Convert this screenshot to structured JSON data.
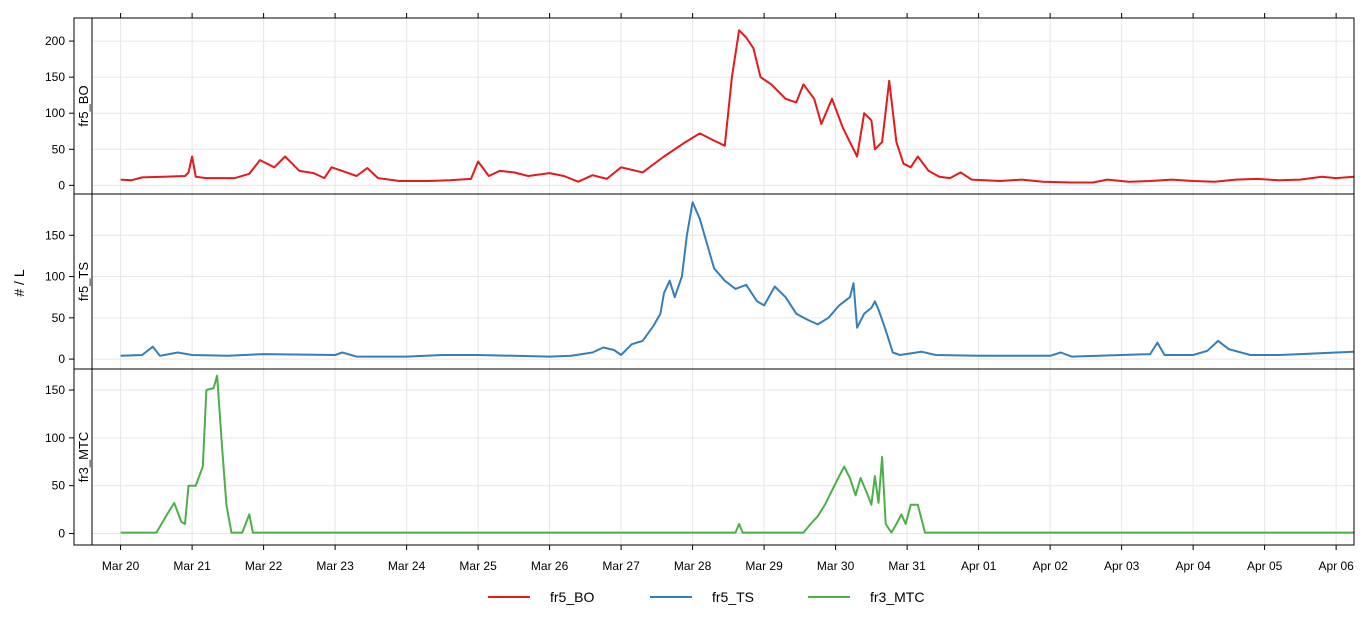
{
  "chart_data": {
    "type": "line",
    "ylabel": "# / L",
    "x_tick_labels": [
      "Mar 20",
      "Mar 21",
      "Mar 22",
      "Mar 23",
      "Mar 24",
      "Mar 25",
      "Mar 26",
      "Mar 27",
      "Mar 28",
      "Mar 29",
      "Mar 30",
      "Mar 31",
      "Apr 01",
      "Apr 02",
      "Apr 03",
      "Apr 04",
      "Apr 05",
      "Apr 06"
    ],
    "x_tick_days": [
      0,
      1,
      2,
      3,
      4,
      5,
      6,
      7,
      8,
      9,
      10,
      11,
      12,
      13,
      14,
      15,
      16,
      17
    ],
    "xlim_days": [
      -0.4,
      17.25
    ],
    "grid": true,
    "legend_position": "bottom",
    "colors": {
      "fr5_BO": "#e41a1c",
      "fr5_TS": "#377eb8",
      "fr3_MTC": "#4daf4a"
    },
    "panels": [
      {
        "strip_label": "fr5_BO",
        "ylim": [
          -12,
          232
        ],
        "y_ticks": [
          0,
          50,
          100,
          150,
          200
        ],
        "series_name": "fr5_BO",
        "color": "#e41a1c",
        "points": [
          [
            0,
            8
          ],
          [
            0.15,
            7
          ],
          [
            0.3,
            11
          ],
          [
            0.6,
            12
          ],
          [
            0.9,
            13
          ],
          [
            0.95,
            18
          ],
          [
            1.0,
            40
          ],
          [
            1.05,
            12
          ],
          [
            1.2,
            10
          ],
          [
            1.6,
            10
          ],
          [
            1.8,
            16
          ],
          [
            1.95,
            35
          ],
          [
            2.15,
            25
          ],
          [
            2.3,
            40
          ],
          [
            2.5,
            20
          ],
          [
            2.7,
            17
          ],
          [
            2.85,
            10
          ],
          [
            2.95,
            25
          ],
          [
            3.1,
            20
          ],
          [
            3.3,
            13
          ],
          [
            3.45,
            24
          ],
          [
            3.6,
            10
          ],
          [
            3.9,
            6
          ],
          [
            4.3,
            6
          ],
          [
            4.6,
            7
          ],
          [
            4.9,
            9
          ],
          [
            5.0,
            33
          ],
          [
            5.15,
            13
          ],
          [
            5.3,
            20
          ],
          [
            5.5,
            18
          ],
          [
            5.7,
            13
          ],
          [
            6.0,
            17
          ],
          [
            6.2,
            13
          ],
          [
            6.4,
            5
          ],
          [
            6.6,
            14
          ],
          [
            6.8,
            9
          ],
          [
            7.0,
            25
          ],
          [
            7.3,
            18
          ],
          [
            7.6,
            40
          ],
          [
            7.9,
            60
          ],
          [
            8.1,
            72
          ],
          [
            8.3,
            62
          ],
          [
            8.45,
            55
          ],
          [
            8.55,
            150
          ],
          [
            8.65,
            215
          ],
          [
            8.75,
            205
          ],
          [
            8.85,
            190
          ],
          [
            8.95,
            150
          ],
          [
            9.1,
            140
          ],
          [
            9.3,
            120
          ],
          [
            9.45,
            115
          ],
          [
            9.55,
            140
          ],
          [
            9.7,
            120
          ],
          [
            9.8,
            85
          ],
          [
            9.95,
            120
          ],
          [
            10.1,
            80
          ],
          [
            10.2,
            60
          ],
          [
            10.3,
            40
          ],
          [
            10.4,
            100
          ],
          [
            10.5,
            90
          ],
          [
            10.55,
            50
          ],
          [
            10.65,
            60
          ],
          [
            10.75,
            145
          ],
          [
            10.85,
            60
          ],
          [
            10.95,
            30
          ],
          [
            11.05,
            25
          ],
          [
            11.15,
            40
          ],
          [
            11.3,
            20
          ],
          [
            11.45,
            12
          ],
          [
            11.6,
            10
          ],
          [
            11.75,
            18
          ],
          [
            11.9,
            8
          ],
          [
            12.3,
            6
          ],
          [
            12.6,
            8
          ],
          [
            12.9,
            5
          ],
          [
            13.3,
            4
          ],
          [
            13.6,
            4
          ],
          [
            13.8,
            8
          ],
          [
            14.1,
            5
          ],
          [
            14.4,
            6
          ],
          [
            14.7,
            8
          ],
          [
            15.0,
            6
          ],
          [
            15.3,
            5
          ],
          [
            15.6,
            8
          ],
          [
            15.9,
            9
          ],
          [
            16.2,
            7
          ],
          [
            16.5,
            8
          ],
          [
            16.8,
            12
          ],
          [
            17.0,
            10
          ],
          [
            17.25,
            12
          ]
        ]
      },
      {
        "strip_label": "fr5_TS",
        "ylim": [
          -12,
          200
        ],
        "y_ticks": [
          0,
          50,
          100,
          150
        ],
        "series_name": "fr5_TS",
        "color": "#377eb8",
        "points": [
          [
            0,
            4
          ],
          [
            0.3,
            5
          ],
          [
            0.45,
            15
          ],
          [
            0.55,
            4
          ],
          [
            0.8,
            8
          ],
          [
            1.0,
            5
          ],
          [
            1.5,
            4
          ],
          [
            2.0,
            6
          ],
          [
            3.0,
            5
          ],
          [
            3.1,
            8
          ],
          [
            3.3,
            3
          ],
          [
            4.0,
            3
          ],
          [
            4.5,
            5
          ],
          [
            5.0,
            5
          ],
          [
            5.5,
            4
          ],
          [
            6.0,
            3
          ],
          [
            6.3,
            4
          ],
          [
            6.6,
            8
          ],
          [
            6.75,
            14
          ],
          [
            6.9,
            11
          ],
          [
            7.0,
            5
          ],
          [
            7.15,
            18
          ],
          [
            7.3,
            22
          ],
          [
            7.45,
            40
          ],
          [
            7.55,
            55
          ],
          [
            7.6,
            80
          ],
          [
            7.68,
            95
          ],
          [
            7.75,
            75
          ],
          [
            7.85,
            100
          ],
          [
            7.92,
            150
          ],
          [
            8.0,
            190
          ],
          [
            8.1,
            170
          ],
          [
            8.2,
            140
          ],
          [
            8.3,
            110
          ],
          [
            8.45,
            95
          ],
          [
            8.6,
            85
          ],
          [
            8.75,
            90
          ],
          [
            8.9,
            70
          ],
          [
            9.0,
            65
          ],
          [
            9.15,
            88
          ],
          [
            9.3,
            75
          ],
          [
            9.45,
            55
          ],
          [
            9.6,
            48
          ],
          [
            9.75,
            42
          ],
          [
            9.9,
            50
          ],
          [
            10.05,
            65
          ],
          [
            10.2,
            75
          ],
          [
            10.25,
            92
          ],
          [
            10.3,
            38
          ],
          [
            10.4,
            55
          ],
          [
            10.5,
            62
          ],
          [
            10.55,
            70
          ],
          [
            10.6,
            60
          ],
          [
            10.7,
            35
          ],
          [
            10.8,
            8
          ],
          [
            10.9,
            5
          ],
          [
            11.2,
            9
          ],
          [
            11.4,
            5
          ],
          [
            12.0,
            4
          ],
          [
            13.0,
            4
          ],
          [
            13.15,
            8
          ],
          [
            13.3,
            3
          ],
          [
            14.0,
            5
          ],
          [
            14.4,
            6
          ],
          [
            14.5,
            20
          ],
          [
            14.6,
            5
          ],
          [
            15.0,
            5
          ],
          [
            15.2,
            10
          ],
          [
            15.35,
            22
          ],
          [
            15.5,
            12
          ],
          [
            15.8,
            5
          ],
          [
            16.2,
            5
          ],
          [
            16.5,
            6
          ],
          [
            17.0,
            8
          ],
          [
            17.25,
            9
          ]
        ]
      },
      {
        "strip_label": "fr3_MTC",
        "ylim": [
          -12,
          172
        ],
        "y_ticks": [
          0,
          50,
          100,
          150
        ],
        "series_name": "fr3_MTC",
        "color": "#4daf4a",
        "points": [
          [
            0,
            1
          ],
          [
            0.5,
            1
          ],
          [
            0.65,
            20
          ],
          [
            0.75,
            32
          ],
          [
            0.85,
            12
          ],
          [
            0.9,
            10
          ],
          [
            0.95,
            50
          ],
          [
            1.05,
            50
          ],
          [
            1.15,
            70
          ],
          [
            1.2,
            150
          ],
          [
            1.3,
            152
          ],
          [
            1.35,
            165
          ],
          [
            1.42,
            90
          ],
          [
            1.48,
            30
          ],
          [
            1.55,
            1
          ],
          [
            1.7,
            1
          ],
          [
            1.8,
            20
          ],
          [
            1.85,
            1
          ],
          [
            2.5,
            1
          ],
          [
            4.0,
            1
          ],
          [
            6.0,
            1
          ],
          [
            8.0,
            1
          ],
          [
            8.6,
            1
          ],
          [
            8.65,
            10
          ],
          [
            8.7,
            1
          ],
          [
            9.0,
            1
          ],
          [
            9.55,
            1
          ],
          [
            9.65,
            10
          ],
          [
            9.75,
            18
          ],
          [
            9.85,
            30
          ],
          [
            9.95,
            45
          ],
          [
            10.05,
            60
          ],
          [
            10.12,
            70
          ],
          [
            10.2,
            58
          ],
          [
            10.28,
            40
          ],
          [
            10.35,
            58
          ],
          [
            10.45,
            40
          ],
          [
            10.5,
            30
          ],
          [
            10.55,
            60
          ],
          [
            10.6,
            32
          ],
          [
            10.65,
            80
          ],
          [
            10.7,
            10
          ],
          [
            10.78,
            1
          ],
          [
            10.85,
            10
          ],
          [
            10.92,
            20
          ],
          [
            10.98,
            10
          ],
          [
            11.05,
            30
          ],
          [
            11.15,
            30
          ],
          [
            11.25,
            1
          ],
          [
            12.0,
            1
          ],
          [
            14.0,
            1
          ],
          [
            16.0,
            1
          ],
          [
            17.25,
            1
          ]
        ]
      }
    ],
    "legend": [
      {
        "name": "fr5_BO",
        "color": "#e41a1c"
      },
      {
        "name": "fr5_TS",
        "color": "#377eb8"
      },
      {
        "name": "fr3_MTC",
        "color": "#4daf4a"
      }
    ]
  }
}
